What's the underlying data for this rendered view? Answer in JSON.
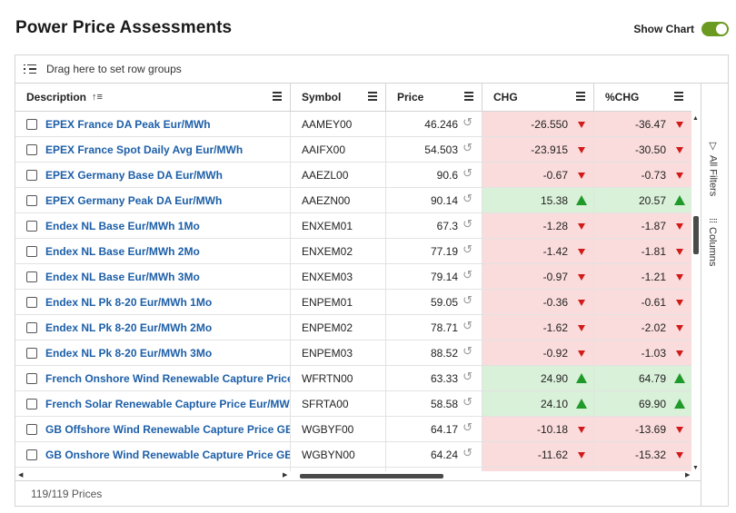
{
  "title": "Power Price Assessments",
  "show_chart": {
    "label": "Show Chart",
    "on": true,
    "color": "#6a9a1f"
  },
  "group_bar": {
    "text": "Drag here to set row groups"
  },
  "columns": {
    "description": "Description",
    "symbol": "Symbol",
    "price": "Price",
    "chg": "CHG",
    "pct_chg": "%CHG"
  },
  "side_panel": {
    "filters": "All Filters",
    "columns": "Columns"
  },
  "rows": [
    {
      "description": "EPEX France DA Peak Eur/MWh",
      "symbol": "AAMEY00",
      "price": "46.246",
      "chg": "-26.550",
      "pct_chg": "-36.47",
      "direction": "down"
    },
    {
      "description": "EPEX France Spot Daily Avg Eur/MWh",
      "symbol": "AAIFX00",
      "price": "54.503",
      "chg": "-23.915",
      "pct_chg": "-30.50",
      "direction": "down"
    },
    {
      "description": "EPEX Germany Base DA Eur/MWh",
      "symbol": "AAEZL00",
      "price": "90.6",
      "chg": "-0.67",
      "pct_chg": "-0.73",
      "direction": "down"
    },
    {
      "description": "EPEX Germany Peak DA Eur/MWh",
      "symbol": "AAEZN00",
      "price": "90.14",
      "chg": "15.38",
      "pct_chg": "20.57",
      "direction": "up"
    },
    {
      "description": "Endex NL Base Eur/MWh 1Mo",
      "symbol": "ENXEM01",
      "price": "67.3",
      "chg": "-1.28",
      "pct_chg": "-1.87",
      "direction": "down"
    },
    {
      "description": "Endex NL Base Eur/MWh 2Mo",
      "symbol": "ENXEM02",
      "price": "77.19",
      "chg": "-1.42",
      "pct_chg": "-1.81",
      "direction": "down"
    },
    {
      "description": "Endex NL Base Eur/MWh 3Mo",
      "symbol": "ENXEM03",
      "price": "79.14",
      "chg": "-0.97",
      "pct_chg": "-1.21",
      "direction": "down"
    },
    {
      "description": "Endex NL Pk 8-20 Eur/MWh 1Mo",
      "symbol": "ENPEM01",
      "price": "59.05",
      "chg": "-0.36",
      "pct_chg": "-0.61",
      "direction": "down"
    },
    {
      "description": "Endex NL Pk 8-20 Eur/MWh 2Mo",
      "symbol": "ENPEM02",
      "price": "78.71",
      "chg": "-1.62",
      "pct_chg": "-2.02",
      "direction": "down"
    },
    {
      "description": "Endex NL Pk 8-20 Eur/MWh 3Mo",
      "symbol": "ENPEM03",
      "price": "88.52",
      "chg": "-0.92",
      "pct_chg": "-1.03",
      "direction": "down"
    },
    {
      "description": "French Onshore Wind Renewable Capture Price",
      "symbol": "WFRTN00",
      "price": "63.33",
      "chg": "24.90",
      "pct_chg": "64.79",
      "direction": "up"
    },
    {
      "description": "French Solar Renewable Capture Price Eur/MW",
      "symbol": "SFRTA00",
      "price": "58.58",
      "chg": "24.10",
      "pct_chg": "69.90",
      "direction": "up"
    },
    {
      "description": "GB Offshore Wind Renewable Capture Price GB",
      "symbol": "WGBYF00",
      "price": "64.17",
      "chg": "-10.18",
      "pct_chg": "-13.69",
      "direction": "down"
    },
    {
      "description": "GB Onshore Wind Renewable Capture Price GB",
      "symbol": "WGBYN00",
      "price": "64.24",
      "chg": "-11.62",
      "pct_chg": "-15.32",
      "direction": "down"
    }
  ],
  "footer": {
    "count": "119/119 Prices"
  },
  "colors": {
    "link": "#1d5fa8",
    "negative_bg": "#fbdcdc",
    "positive_bg": "#d9f0d9",
    "down_arrow": "#d11a1a",
    "up_arrow": "#1f9a2a"
  }
}
